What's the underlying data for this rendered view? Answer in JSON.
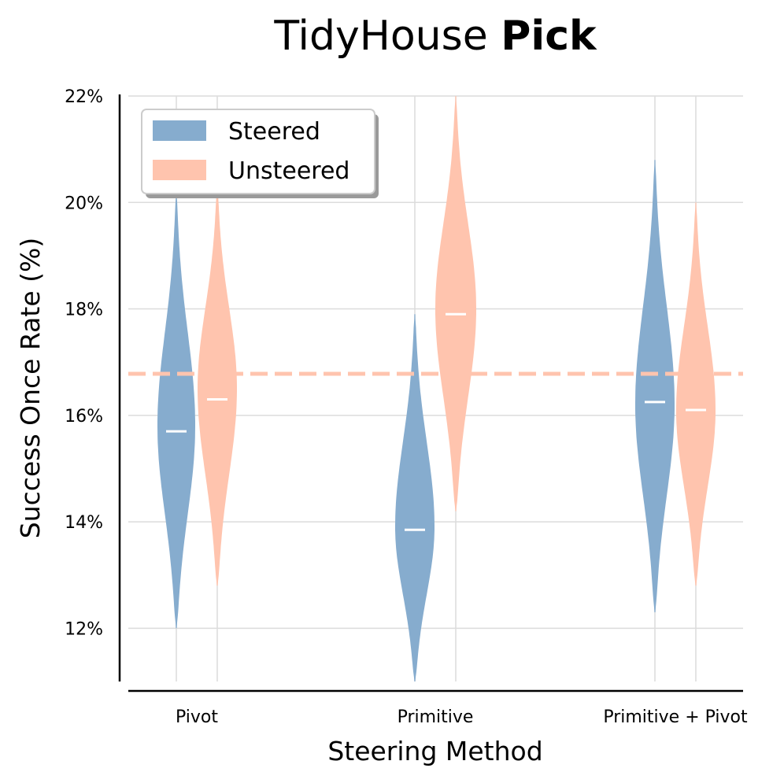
{
  "chart_data": {
    "type": "violin",
    "title_plain": "TidyHouse",
    "title_bold": "Pick",
    "xlabel": "Steering Method",
    "ylabel": "Success Once Rate (%)",
    "ylim": [
      11,
      22
    ],
    "yticks": [
      12,
      14,
      16,
      18,
      20,
      22
    ],
    "ytick_labels": [
      "12%",
      "14%",
      "16%",
      "18%",
      "20%",
      "22%"
    ],
    "grid": true,
    "categories": [
      "Pivot",
      "Primitive",
      "Primitive + Pivot"
    ],
    "legend_position": "top-left",
    "reference_line": {
      "value": 16.78,
      "color": "#FFC4AE",
      "style": "dashed"
    },
    "series": [
      {
        "name": "Steered",
        "color": "#86ACCE",
        "violins": [
          {
            "median": 15.7,
            "min": 12.0,
            "max": 20.2,
            "mode": 15.8,
            "max_halfwidth": 0.24
          },
          {
            "median": 13.85,
            "min": 11.0,
            "max": 17.9,
            "mode": 13.9,
            "max_halfwidth": 0.25
          },
          {
            "median": 16.25,
            "min": 12.3,
            "max": 20.8,
            "mode": 16.2,
            "max_halfwidth": 0.25
          }
        ]
      },
      {
        "name": "Unsteered",
        "color": "#FFC4AE",
        "violins": [
          {
            "median": 16.3,
            "min": 12.8,
            "max": 20.3,
            "mode": 16.5,
            "max_halfwidth": 0.25
          },
          {
            "median": 17.9,
            "min": 14.2,
            "max": 22.0,
            "mode": 18.0,
            "max_halfwidth": 0.26
          },
          {
            "median": 16.1,
            "min": 12.8,
            "max": 20.0,
            "mode": 16.1,
            "max_halfwidth": 0.25
          }
        ]
      }
    ]
  }
}
